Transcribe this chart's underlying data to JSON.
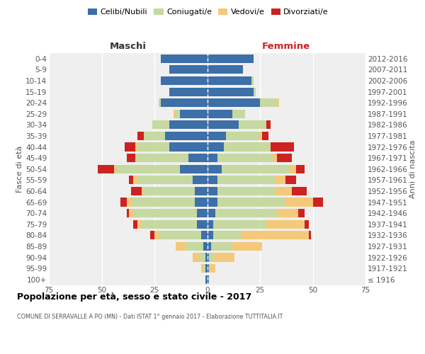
{
  "age_groups": [
    "100+",
    "95-99",
    "90-94",
    "85-89",
    "80-84",
    "75-79",
    "70-74",
    "65-69",
    "60-64",
    "55-59",
    "50-54",
    "45-49",
    "40-44",
    "35-39",
    "30-34",
    "25-29",
    "20-24",
    "15-19",
    "10-14",
    "5-9",
    "0-4"
  ],
  "birth_years": [
    "≤ 1916",
    "1917-1921",
    "1922-1926",
    "1927-1931",
    "1932-1936",
    "1937-1941",
    "1942-1946",
    "1947-1951",
    "1952-1956",
    "1957-1961",
    "1962-1966",
    "1967-1971",
    "1972-1976",
    "1977-1981",
    "1982-1986",
    "1987-1991",
    "1992-1996",
    "1997-2001",
    "2002-2006",
    "2007-2011",
    "2012-2016"
  ],
  "male": {
    "celibi": [
      1,
      1,
      1,
      2,
      3,
      5,
      5,
      6,
      6,
      7,
      13,
      9,
      18,
      20,
      18,
      13,
      22,
      18,
      22,
      18,
      22
    ],
    "coniugati": [
      0,
      1,
      3,
      8,
      20,
      26,
      30,
      30,
      24,
      26,
      30,
      25,
      15,
      10,
      8,
      2,
      1,
      0,
      0,
      0,
      0
    ],
    "vedovi": [
      0,
      1,
      3,
      5,
      2,
      2,
      2,
      2,
      1,
      2,
      1,
      0,
      1,
      0,
      0,
      1,
      0,
      0,
      0,
      0,
      0
    ],
    "divorziati": [
      0,
      0,
      0,
      0,
      2,
      2,
      1,
      3,
      5,
      2,
      8,
      4,
      5,
      3,
      0,
      0,
      0,
      0,
      0,
      0,
      0
    ]
  },
  "female": {
    "nubili": [
      1,
      1,
      1,
      2,
      3,
      3,
      4,
      5,
      5,
      5,
      7,
      5,
      8,
      9,
      15,
      12,
      25,
      22,
      21,
      17,
      22
    ],
    "coniugate": [
      0,
      0,
      2,
      10,
      13,
      25,
      29,
      32,
      27,
      27,
      32,
      26,
      22,
      16,
      13,
      6,
      8,
      1,
      1,
      0,
      0
    ],
    "vedove": [
      0,
      3,
      10,
      14,
      32,
      18,
      10,
      13,
      8,
      5,
      3,
      2,
      0,
      1,
      0,
      0,
      1,
      0,
      0,
      0,
      0
    ],
    "divorziate": [
      0,
      0,
      0,
      0,
      1,
      2,
      3,
      5,
      7,
      5,
      4,
      7,
      11,
      3,
      2,
      0,
      0,
      0,
      0,
      0,
      0
    ]
  },
  "colors": {
    "celibi": "#3d6fa8",
    "coniugati": "#c5d9a0",
    "vedovi": "#f5c97a",
    "divorziati": "#cc2222"
  },
  "xlim": 75,
  "title": "Popolazione per età, sesso e stato civile - 2017",
  "subtitle": "COMUNE DI SERRAVALLE A PO (MN) - Dati ISTAT 1° gennaio 2017 - Elaborazione TUTTITALIA.IT",
  "ylabel_left": "Fasce di età",
  "ylabel_right": "Anni di nascita",
  "legend_labels": [
    "Celibi/Nubili",
    "Coniugati/e",
    "Vedovi/e",
    "Divorziati/e"
  ],
  "bg_color": "#efefef",
  "bar_height": 0.78,
  "maschi_color": "#333333",
  "femmine_color": "#cc2222",
  "grid_color": "white",
  "tick_label_color": "#555555"
}
